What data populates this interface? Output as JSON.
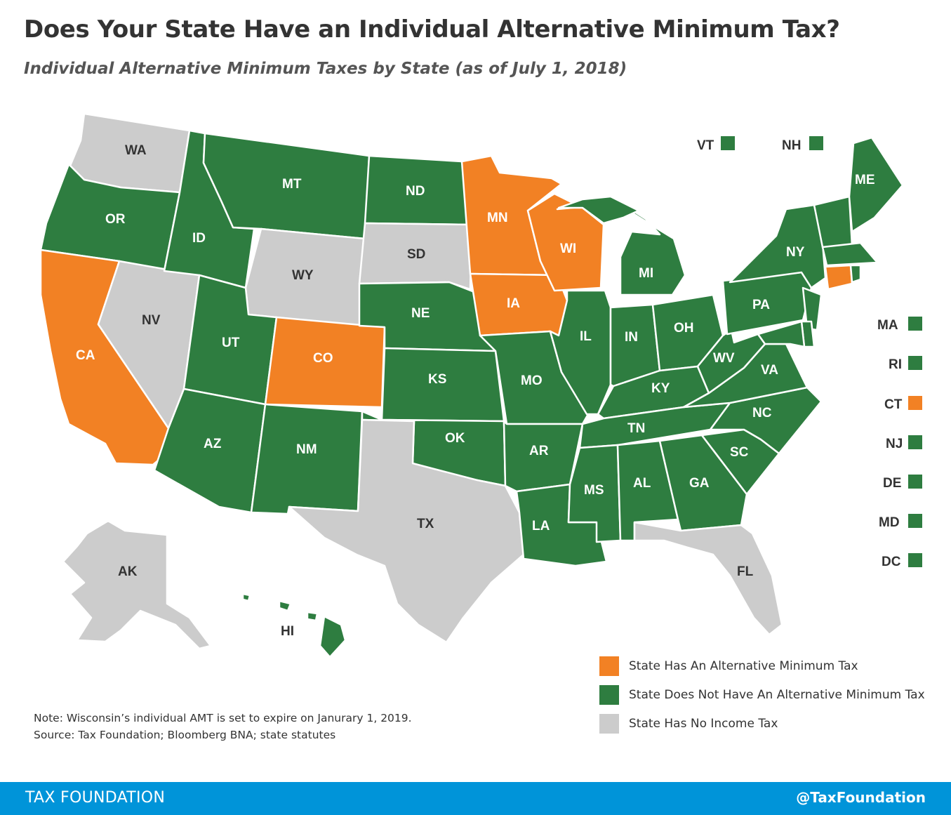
{
  "header": {
    "title": "Does Your State Have an Individual Alternative Minimum Tax?",
    "subtitle": "Individual Alternative Minimum Taxes by State (as of July 1, 2018)"
  },
  "colors": {
    "amt": "#f28124",
    "no_amt": "#2e7d40",
    "no_income_tax": "#cccccc",
    "footer": "#0094d9"
  },
  "states": {
    "WA": {
      "label": "WA",
      "category": "no_income_tax"
    },
    "OR": {
      "label": "OR",
      "category": "no_amt"
    },
    "CA": {
      "label": "CA",
      "category": "amt"
    },
    "NV": {
      "label": "NV",
      "category": "no_income_tax"
    },
    "ID": {
      "label": "ID",
      "category": "no_amt"
    },
    "MT": {
      "label": "MT",
      "category": "no_amt"
    },
    "WY": {
      "label": "WY",
      "category": "no_income_tax"
    },
    "UT": {
      "label": "UT",
      "category": "no_amt"
    },
    "AZ": {
      "label": "AZ",
      "category": "no_amt"
    },
    "CO": {
      "label": "CO",
      "category": "amt"
    },
    "NM": {
      "label": "NM",
      "category": "no_amt"
    },
    "ND": {
      "label": "ND",
      "category": "no_amt"
    },
    "SD": {
      "label": "SD",
      "category": "no_income_tax"
    },
    "NE": {
      "label": "NE",
      "category": "no_amt"
    },
    "KS": {
      "label": "KS",
      "category": "no_amt"
    },
    "OK": {
      "label": "OK",
      "category": "no_amt"
    },
    "TX": {
      "label": "TX",
      "category": "no_income_tax"
    },
    "MN": {
      "label": "MN",
      "category": "amt"
    },
    "IA": {
      "label": "IA",
      "category": "amt"
    },
    "MO": {
      "label": "MO",
      "category": "no_amt"
    },
    "AR": {
      "label": "AR",
      "category": "no_amt"
    },
    "LA": {
      "label": "LA",
      "category": "no_amt"
    },
    "WI": {
      "label": "WI",
      "category": "amt"
    },
    "IL": {
      "label": "IL",
      "category": "no_amt"
    },
    "MI": {
      "label": "MI",
      "category": "no_amt"
    },
    "IN": {
      "label": "IN",
      "category": "no_amt"
    },
    "OH": {
      "label": "OH",
      "category": "no_amt"
    },
    "KY": {
      "label": "KY",
      "category": "no_amt"
    },
    "TN": {
      "label": "TN",
      "category": "no_amt"
    },
    "MS": {
      "label": "MS",
      "category": "no_amt"
    },
    "AL": {
      "label": "AL",
      "category": "no_amt"
    },
    "GA": {
      "label": "GA",
      "category": "no_amt"
    },
    "FL": {
      "label": "FL",
      "category": "no_income_tax"
    },
    "SC": {
      "label": "SC",
      "category": "no_amt"
    },
    "NC": {
      "label": "NC",
      "category": "no_amt"
    },
    "VA": {
      "label": "VA",
      "category": "no_amt"
    },
    "WV": {
      "label": "WV",
      "category": "no_amt"
    },
    "PA": {
      "label": "PA",
      "category": "no_amt"
    },
    "NY": {
      "label": "NY",
      "category": "no_amt"
    },
    "ME": {
      "label": "ME",
      "category": "no_amt"
    },
    "AK": {
      "label": "AK",
      "category": "no_income_tax"
    },
    "HI": {
      "label": "HI",
      "category": "no_amt"
    }
  },
  "small_states": [
    {
      "label": "VT",
      "category": "no_amt"
    },
    {
      "label": "NH",
      "category": "no_amt"
    },
    {
      "label": "MA",
      "category": "no_amt"
    },
    {
      "label": "RI",
      "category": "no_amt"
    },
    {
      "label": "CT",
      "category": "amt"
    },
    {
      "label": "NJ",
      "category": "no_amt"
    },
    {
      "label": "DE",
      "category": "no_amt"
    },
    {
      "label": "MD",
      "category": "no_amt"
    },
    {
      "label": "DC",
      "category": "no_amt"
    }
  ],
  "legend": [
    {
      "label": "State Has An Alternative Minimum Tax",
      "category": "amt"
    },
    {
      "label": "State Does Not Have An Alternative Minimum Tax",
      "category": "no_amt"
    },
    {
      "label": "State Has No Income Tax",
      "category": "no_income_tax"
    }
  ],
  "notes": {
    "note": "Note: Wisconsin’s individual AMT is set to expire on Janurary 1, 2019.",
    "source": "Source: Tax Foundation; Bloomberg BNA; state statutes"
  },
  "footer": {
    "brand": "TAX FOUNDATION",
    "handle": "@TaxFoundation"
  }
}
